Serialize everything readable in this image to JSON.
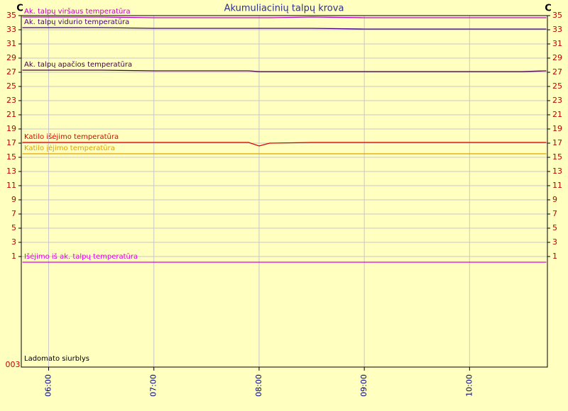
{
  "chart_data": [
    {
      "type": "line",
      "title": "Akumuliacinių talpų krova",
      "y_label": "C",
      "x": [
        5.75,
        6,
        6.5,
        7,
        7.5,
        7.9,
        8,
        8.1,
        8.5,
        9,
        9.5,
        10,
        10.5,
        10.73
      ],
      "xlim": [
        5.74,
        10.74
      ],
      "xticks": [
        {
          "value": 6,
          "label": "06:00"
        },
        {
          "value": 7,
          "label": "07:00"
        },
        {
          "value": 8,
          "label": "08:00"
        },
        {
          "value": 9,
          "label": "09:00"
        },
        {
          "value": 10,
          "label": "10:00"
        }
      ],
      "ylim": [
        0,
        35
      ],
      "yticks": [
        1,
        3,
        5,
        7,
        9,
        11,
        13,
        15,
        17,
        19,
        21,
        23,
        25,
        27,
        29,
        31,
        33,
        35
      ],
      "grid": true,
      "series": [
        {
          "name": "Ak. talpų viršaus temperatūra",
          "color": "#c000c0",
          "values": [
            34.8,
            34.8,
            34.8,
            34.7,
            34.7,
            34.7,
            34.7,
            34.7,
            34.8,
            34.7,
            34.7,
            34.7,
            34.7,
            34.7
          ]
        },
        {
          "name": "Ak. talpų vidurio temperatūra",
          "color": "#400080",
          "values": [
            33.3,
            33.3,
            33.3,
            33.2,
            33.2,
            33.2,
            33.2,
            33.2,
            33.2,
            33.1,
            33.1,
            33.1,
            33.1,
            33.1
          ]
        },
        {
          "name": "Ak. talpų apačios temperatūra",
          "color": "#400040",
          "values": [
            27.3,
            27.3,
            27.3,
            27.2,
            27.2,
            27.2,
            27.1,
            27.1,
            27.1,
            27.1,
            27.1,
            27.1,
            27.1,
            27.2
          ]
        },
        {
          "name": "Katilo išėjimo temperatūra",
          "color": "#e00000",
          "values": [
            17.1,
            17.1,
            17.1,
            17.1,
            17.1,
            17.1,
            16.6,
            17.0,
            17.1,
            17.1,
            17.1,
            17.1,
            17.1,
            17.1
          ]
        },
        {
          "name": "Katilo įėjimo temperatūra",
          "color": "#e0a000",
          "values": [
            15.5,
            15.5,
            15.5,
            15.5,
            15.5,
            15.5,
            15.5,
            15.5,
            15.5,
            15.5,
            15.5,
            15.5,
            15.5,
            15.5
          ]
        },
        {
          "name": "Išėjimo iš ak. talpų temperatūra",
          "color": "#e000e0",
          "values": [
            0.2,
            0.2,
            0.2,
            0.2,
            0.2,
            0.2,
            0.2,
            0.2,
            0.2,
            0.2,
            0.2,
            0.2,
            0.2,
            0.2
          ]
        }
      ]
    },
    {
      "type": "line",
      "annotation": "Ladomato siurblys",
      "ylim": [
        0,
        1
      ],
      "yticks": [
        {
          "value": 0,
          "label": "003"
        }
      ]
    }
  ]
}
